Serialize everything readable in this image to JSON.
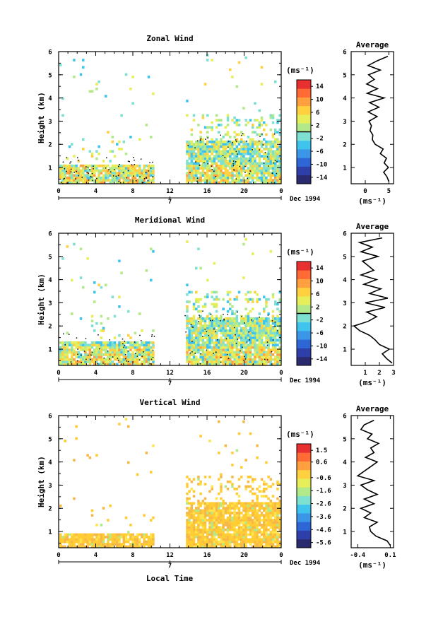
{
  "colors": {
    "colormap": [
      "#2a2a6e",
      "#2f3fa8",
      "#2f66d6",
      "#3c96e8",
      "#3fc4ee",
      "#7ee0d0",
      "#b2ea8a",
      "#e6ee5a",
      "#ffd040",
      "#ffa040",
      "#ff6a35",
      "#e83030"
    ],
    "fill_dominant_low": "#f7c43a",
    "fill_vertical": "#ffcc33",
    "axes": "#000000"
  },
  "bottom_xlabel": "Local Time",
  "chart_data": [
    {
      "type": "heatmap",
      "title": "Zonal Wind",
      "ylabel": "Height (km)",
      "ylim": [
        0.3,
        6
      ],
      "yticks": [
        "1",
        "2",
        "3",
        "4",
        "5",
        "6"
      ],
      "xlim": [
        0,
        24
      ],
      "xticks": [
        "0",
        "4",
        "8",
        "12",
        "16",
        "20",
        "0"
      ],
      "date_mark": "7",
      "date_label": "Dec 1994",
      "colorbar": {
        "unit": "(ms⁻¹)",
        "ticks": [
          "14",
          "10",
          "6",
          "2",
          "-2",
          "-6",
          "-10",
          "-14"
        ],
        "vmin": -16,
        "vmax": 16,
        "zero_line": 0
      },
      "data_gap_hours": [
        10.3,
        13.5
      ],
      "dense_data_top_km": {
        "morning": 1.2,
        "afternoon": 2.2
      },
      "average": {
        "title": "Average",
        "xlabel": "(ms⁻¹)",
        "xlim": [
          -3,
          6
        ],
        "xticks": [
          "0",
          "5"
        ],
        "xtick_values": [
          0,
          5
        ],
        "yticks": [
          "1",
          "2",
          "3",
          "4",
          "5",
          "6"
        ],
        "heights": [
          0.4,
          0.6,
          0.8,
          1.0,
          1.2,
          1.4,
          1.6,
          1.8,
          2.0,
          2.2,
          2.4,
          2.6,
          2.8,
          3.0,
          3.2,
          3.4,
          3.6,
          3.8,
          4.0,
          4.2,
          4.4,
          4.6,
          4.8,
          5.0,
          5.2,
          5.4,
          5.6,
          5.8
        ],
        "values": [
          5.0,
          4.6,
          3.9,
          4.9,
          4.0,
          4.5,
          3.2,
          3.8,
          2.1,
          1.5,
          1.6,
          1.0,
          1.3,
          0.8,
          2.5,
          0.6,
          2.9,
          0.9,
          4.0,
          0.4,
          2.6,
          0.3,
          1.9,
          0.7,
          3.2,
          0.6,
          2.5,
          4.8
        ]
      }
    },
    {
      "type": "heatmap",
      "title": "Meridional Wind",
      "ylabel": "Height (km)",
      "ylim": [
        0.3,
        6
      ],
      "yticks": [
        "1",
        "2",
        "3",
        "4",
        "5",
        "6"
      ],
      "xlim": [
        0,
        24
      ],
      "xticks": [
        "0",
        "4",
        "8",
        "12",
        "16",
        "20",
        "0"
      ],
      "date_mark": "7",
      "date_label": "Dec 1994",
      "colorbar": {
        "unit": "(ms⁻¹)",
        "ticks": [
          "14",
          "10",
          "6",
          "2",
          "-2",
          "-6",
          "-10",
          "-14"
        ],
        "vmin": -16,
        "vmax": 16,
        "zero_line": 0
      },
      "data_gap_hours": [
        10.3,
        13.5
      ],
      "dense_data_top_km": {
        "morning": 1.4,
        "afternoon": 2.4
      },
      "average": {
        "title": "Average",
        "xlabel": "(ms⁻¹)",
        "xlim": [
          0,
          3
        ],
        "xticks": [
          "1",
          "2",
          "3"
        ],
        "xtick_values": [
          1,
          2,
          3
        ],
        "yticks": [
          "1",
          "2",
          "3",
          "4",
          "5",
          "6"
        ],
        "heights": [
          0.4,
          0.6,
          0.8,
          1.0,
          1.2,
          1.4,
          1.6,
          1.8,
          2.0,
          2.2,
          2.4,
          2.6,
          2.8,
          3.0,
          3.2,
          3.4,
          3.6,
          3.8,
          4.0,
          4.2,
          4.4,
          4.6,
          4.8,
          5.0,
          5.2,
          5.4,
          5.6,
          5.8
        ],
        "values": [
          2.9,
          2.5,
          2.2,
          2.7,
          2.0,
          1.7,
          1.3,
          0.6,
          0.2,
          1.2,
          1.8,
          1.1,
          2.4,
          1.0,
          2.6,
          1.3,
          2.1,
          0.9,
          1.8,
          0.7,
          1.6,
          1.2,
          0.8,
          1.9,
          0.7,
          1.5,
          0.6,
          2.2
        ]
      }
    },
    {
      "type": "heatmap",
      "title": "Vertical Wind",
      "ylabel": "Height (km)",
      "ylim": [
        0.3,
        6
      ],
      "yticks": [
        "1",
        "2",
        "3",
        "4",
        "5",
        "6"
      ],
      "xlim": [
        0,
        24
      ],
      "xticks": [
        "0",
        "4",
        "8",
        "12",
        "16",
        "20",
        "0"
      ],
      "date_mark": "7",
      "date_label": "Dec 1994",
      "colorbar": {
        "unit": "(ms⁻¹)",
        "ticks": [
          "1.5",
          "0.6",
          "-0.6",
          "-1.6",
          "-2.6",
          "-3.6",
          "-4.6",
          "-5.6"
        ],
        "vmin": -6,
        "vmax": 2,
        "zero_line": null
      },
      "data_gap_hours": [
        10.3,
        13.5
      ],
      "dense_data_top_km": {
        "morning": 1.0,
        "afternoon": 2.3
      },
      "average": {
        "title": "Average",
        "xlabel": "(ms⁻¹)",
        "xlim": [
          -0.5,
          0.15
        ],
        "xticks": [
          "-0.4",
          "0.1"
        ],
        "xtick_values": [
          -0.4,
          0.1
        ],
        "yticks": [
          "1",
          "2",
          "3",
          "4",
          "5",
          "6"
        ],
        "heights": [
          0.4,
          0.6,
          0.8,
          1.0,
          1.2,
          1.4,
          1.6,
          1.8,
          2.0,
          2.2,
          2.4,
          2.6,
          2.8,
          3.0,
          3.2,
          3.4,
          3.6,
          3.8,
          4.0,
          4.2,
          4.4,
          4.6,
          4.8,
          5.0,
          5.2,
          5.4,
          5.6,
          5.8
        ],
        "values": [
          0.1,
          0.05,
          -0.12,
          -0.2,
          -0.22,
          -0.1,
          -0.3,
          -0.2,
          -0.35,
          -0.15,
          -0.3,
          -0.1,
          -0.25,
          -0.35,
          -0.15,
          -0.4,
          -0.3,
          -0.2,
          -0.1,
          -0.28,
          -0.15,
          -0.2,
          -0.08,
          -0.25,
          -0.18,
          -0.35,
          -0.3,
          -0.15
        ]
      }
    }
  ]
}
